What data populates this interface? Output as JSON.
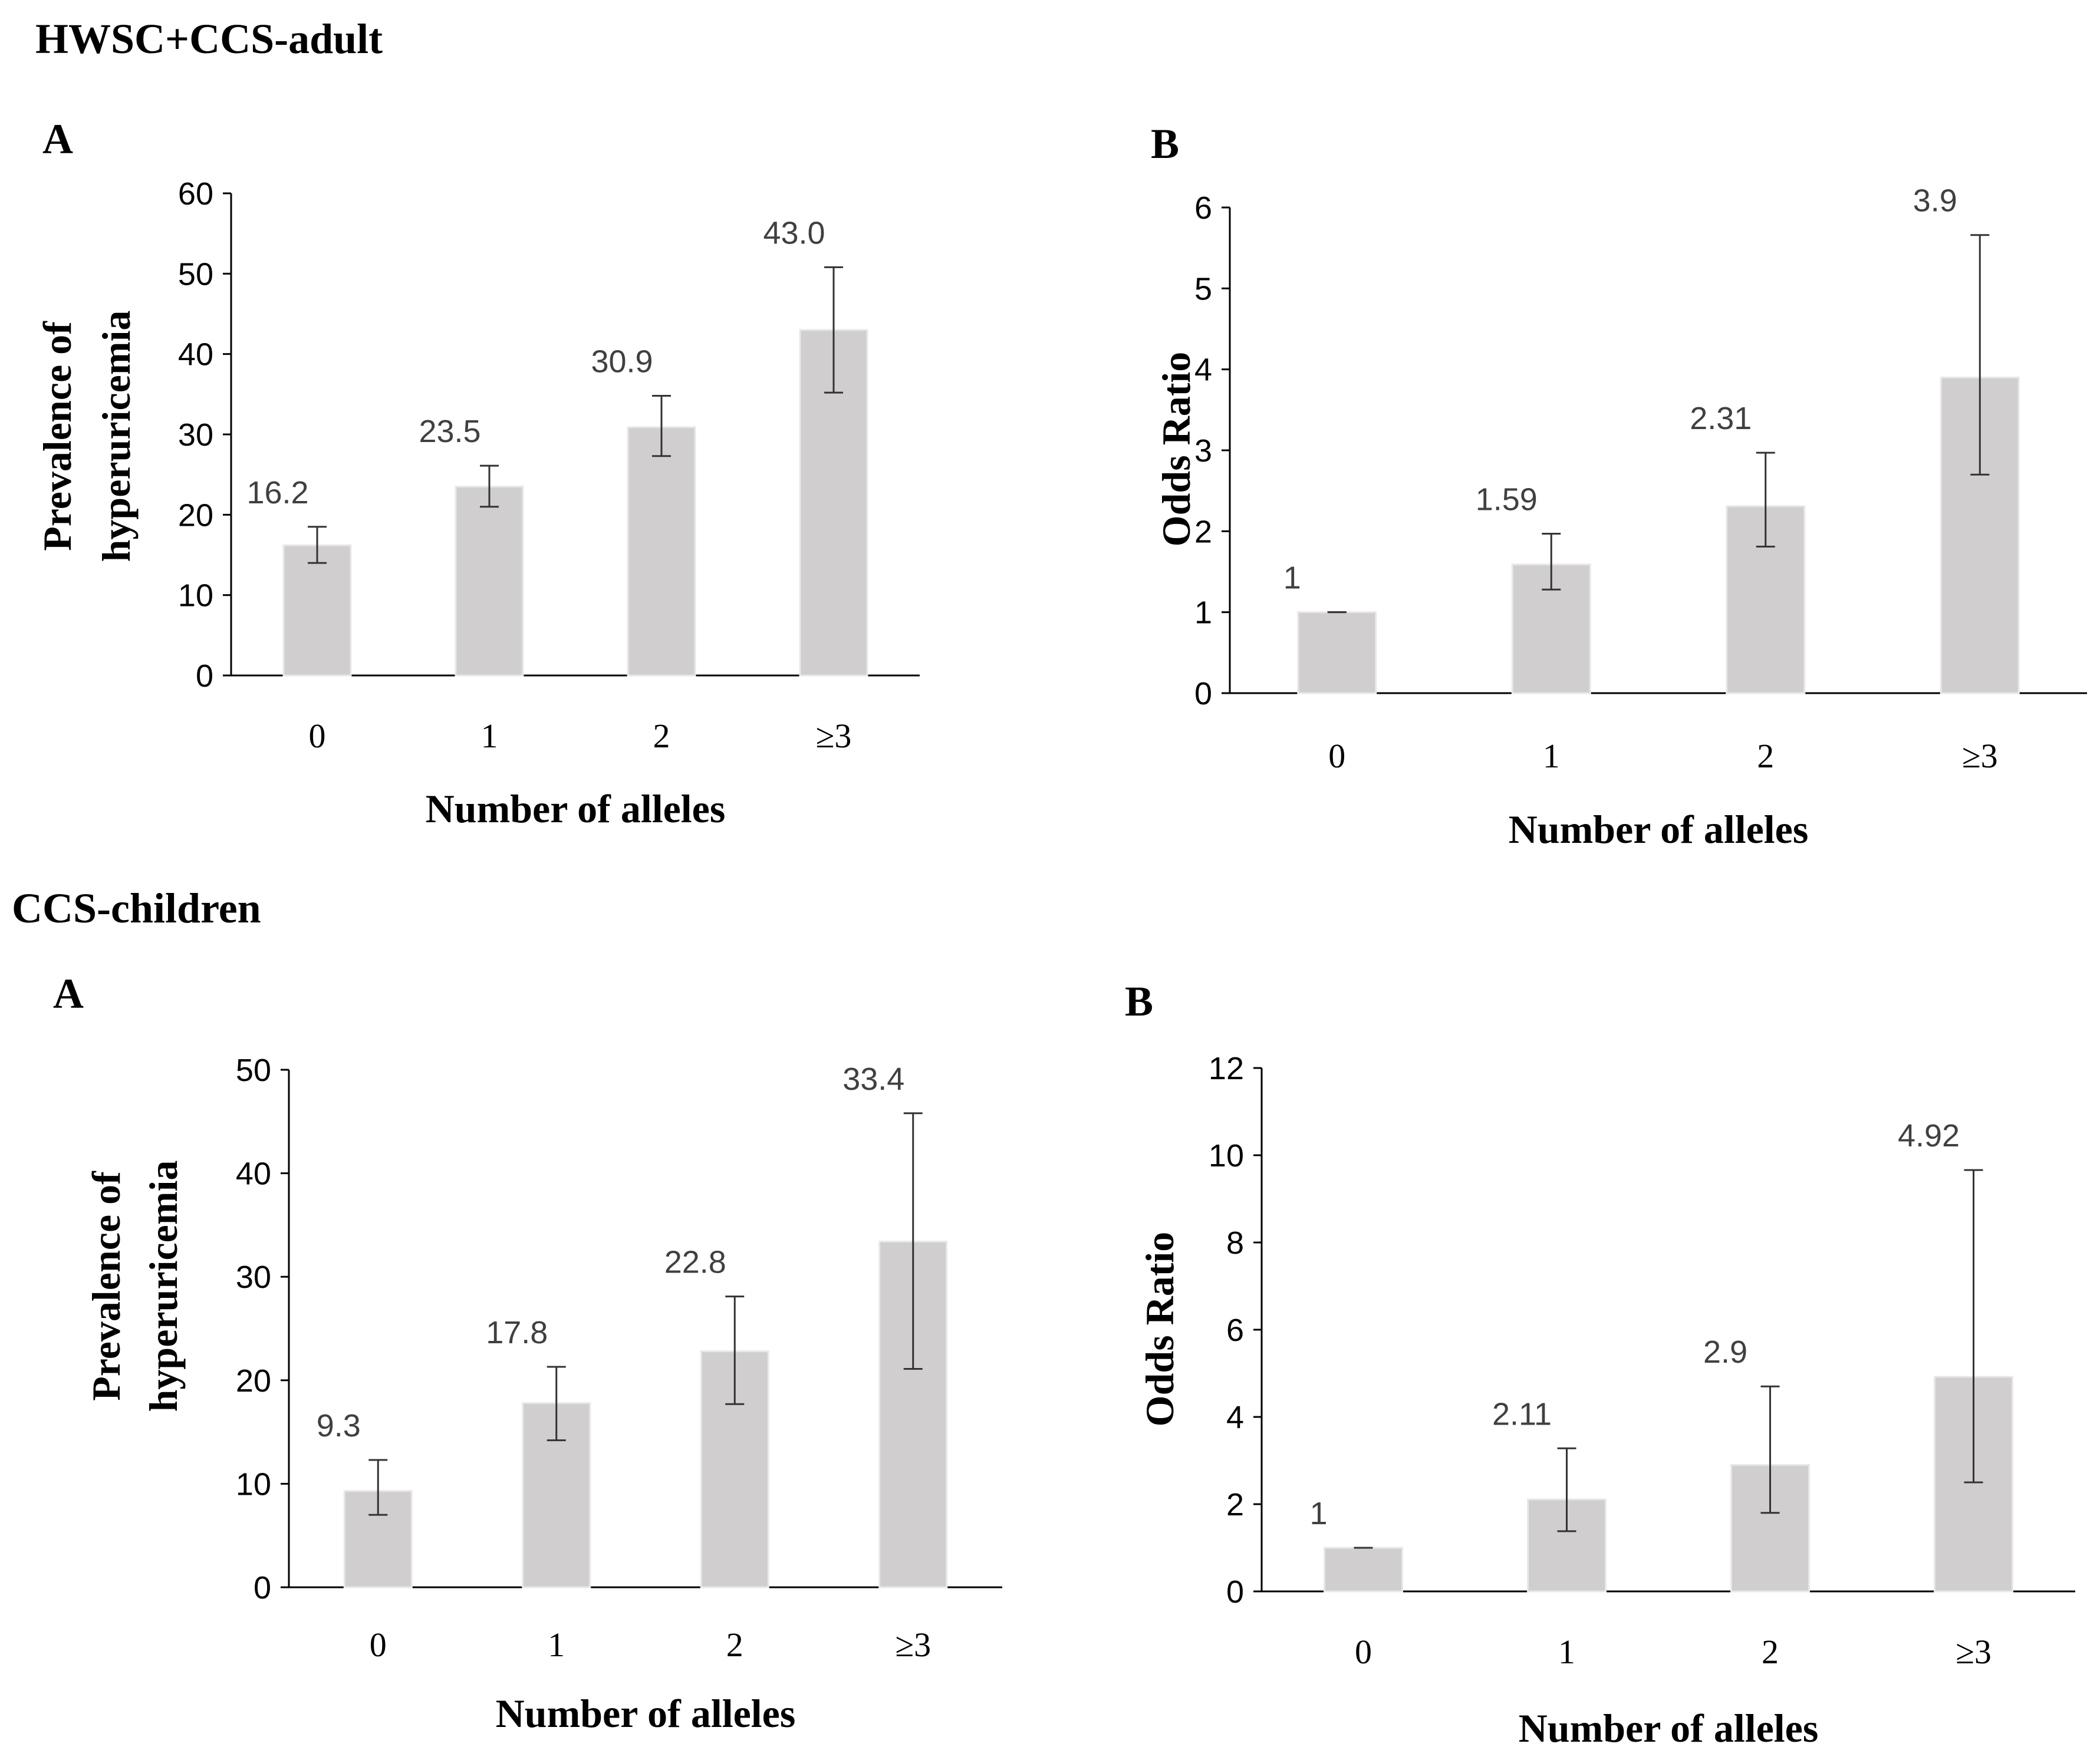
{
  "section_titles": [
    "HWSC+CCS-adult",
    "CCS-children"
  ],
  "chart_data": [
    {
      "panel": "A",
      "group": "HWSC+CCS-adult",
      "type": "bar",
      "categories": [
        "0",
        "1",
        "2",
        "≥3"
      ],
      "values": [
        16.2,
        23.5,
        30.9,
        43.0
      ],
      "value_labels": [
        "16.2",
        "23.5",
        "30.9",
        "43.0"
      ],
      "error_low": [
        14.0,
        21.0,
        27.3,
        35.2
      ],
      "error_high": [
        18.5,
        26.1,
        34.8,
        50.8
      ],
      "ylabel_lines": [
        "Prevalence of",
        "hyperuricemia"
      ],
      "xlabel": "Number of alleles",
      "ylim": [
        0,
        60
      ],
      "yticks": [
        0,
        10,
        20,
        30,
        40,
        50,
        60
      ],
      "grid": false
    },
    {
      "panel": "B",
      "group": "HWSC+CCS-adult",
      "type": "bar",
      "categories": [
        "0",
        "1",
        "2",
        "≥3"
      ],
      "values": [
        1,
        1.59,
        2.31,
        3.9
      ],
      "value_labels": [
        "1",
        "1.59",
        "2.31",
        "3.9"
      ],
      "error_low": [
        1.0,
        1.28,
        1.81,
        2.7
      ],
      "error_high": [
        1.0,
        1.97,
        2.97,
        5.66
      ],
      "ylabel_lines": [
        "Odds Ratio"
      ],
      "xlabel": "Number of alleles",
      "ylim": [
        0,
        6
      ],
      "yticks": [
        0,
        1,
        2,
        3,
        4,
        5,
        6
      ],
      "grid": false
    },
    {
      "panel": "A",
      "group": "CCS-children",
      "type": "bar",
      "categories": [
        "0",
        "1",
        "2",
        "≥3"
      ],
      "values": [
        9.3,
        17.8,
        22.8,
        33.4
      ],
      "value_labels": [
        "9.3",
        "17.8",
        "22.8",
        "33.4"
      ],
      "error_low": [
        7.0,
        14.2,
        17.7,
        21.1
      ],
      "error_high": [
        12.3,
        21.3,
        28.1,
        45.8
      ],
      "ylabel_lines": [
        "Prevalence of",
        "hyperuricemia"
      ],
      "xlabel": "Number of alleles",
      "ylim": [
        0,
        50
      ],
      "yticks": [
        0,
        10,
        20,
        30,
        40,
        50
      ],
      "grid": false
    },
    {
      "panel": "B",
      "group": "CCS-children",
      "type": "bar",
      "categories": [
        "0",
        "1",
        "2",
        "≥3"
      ],
      "values": [
        1,
        2.11,
        2.9,
        4.92
      ],
      "value_labels": [
        "1",
        "2.11",
        "2.9",
        "4.92"
      ],
      "error_low": [
        1.0,
        1.38,
        1.8,
        2.5
      ],
      "error_high": [
        1.0,
        3.28,
        4.7,
        9.66
      ],
      "ylabel_lines": [
        "Odds Ratio"
      ],
      "xlabel": "Number of alleles",
      "ylim": [
        0,
        12
      ],
      "yticks": [
        0,
        2,
        4,
        6,
        8,
        10,
        12
      ],
      "grid": false
    }
  ]
}
